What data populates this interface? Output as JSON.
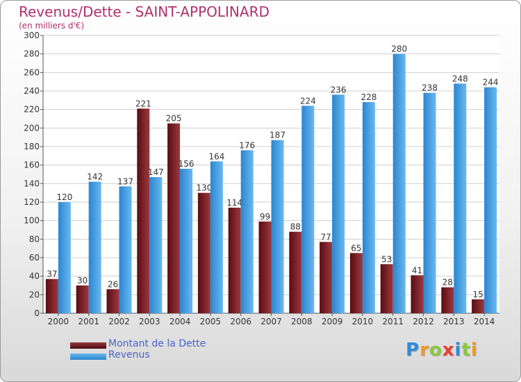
{
  "chart_data": {
    "type": "bar",
    "title": "Revenus/Dette - SAINT-APPOLINARD",
    "subtitle": "(en milliers d'€)",
    "categories": [
      "2000",
      "2001",
      "2002",
      "2003",
      "2004",
      "2005",
      "2006",
      "2007",
      "2008",
      "2009",
      "2010",
      "2011",
      "2012",
      "2013",
      "2014"
    ],
    "series": [
      {
        "name": "Montant de la Dette",
        "color": "#7a1f24",
        "values": [
          37,
          30,
          26,
          221,
          205,
          130,
          114,
          99,
          88,
          77,
          65,
          53,
          41,
          28,
          15
        ]
      },
      {
        "name": "Revenus",
        "color": "#4aa3e4",
        "values": [
          120,
          142,
          137,
          147,
          156,
          164,
          176,
          187,
          224,
          236,
          228,
          280,
          238,
          248,
          244
        ]
      }
    ],
    "ylim": [
      0,
      300
    ],
    "ytick_step": 20,
    "grid": true,
    "legend_position": "bottom-left"
  },
  "colors": {
    "title": "#b0306a",
    "debt_dark": "#5a0c12",
    "debt_light": "#9a3a3f",
    "revenue_dark": "#2a86d0",
    "revenue_light": "#6ab8f0"
  },
  "logo": {
    "letters": [
      "P",
      "r",
      "o",
      "x",
      "i",
      "t",
      "i"
    ],
    "colors": [
      "#2e8bd8",
      "#f29a1d",
      "#8cc63f",
      "#e8402e",
      "#2e8bd8",
      "#8cc63f",
      "#f29a1d"
    ]
  }
}
